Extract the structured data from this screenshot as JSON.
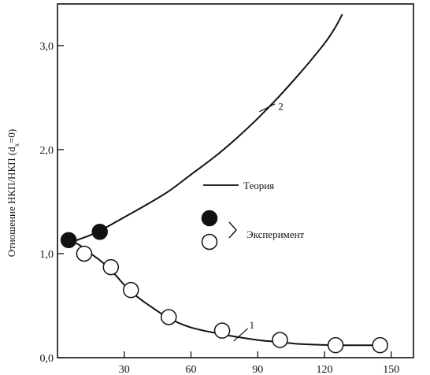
{
  "chart_data": {
    "type": "line",
    "ylabel_main": "Отношение НКП/НКП (d",
    "ylabel_sub": "x",
    "ylabel_tail": "=0)",
    "xlim": [
      0,
      160
    ],
    "ylim": [
      0,
      3.4
    ],
    "x_ticks": [
      {
        "value": 30,
        "label": "30"
      },
      {
        "value": 60,
        "label": "60"
      },
      {
        "value": 90,
        "label": "90"
      },
      {
        "value": 120,
        "label": "120"
      },
      {
        "value": 150,
        "label": "150"
      }
    ],
    "y_ticks": [
      {
        "value": 0,
        "label": "0,0"
      },
      {
        "value": 1,
        "label": "1,0"
      },
      {
        "value": 2,
        "label": "2,0"
      },
      {
        "value": 3,
        "label": "3,0"
      }
    ],
    "series": [
      {
        "name": "2",
        "kind": "theory",
        "x": [
          5,
          10,
          15,
          20,
          30,
          40,
          50,
          60,
          70,
          80,
          90,
          100,
          110,
          120,
          125,
          128
        ],
        "y": [
          1.1,
          1.14,
          1.18,
          1.23,
          1.35,
          1.47,
          1.6,
          1.76,
          1.92,
          2.1,
          2.3,
          2.52,
          2.76,
          3.02,
          3.18,
          3.3
        ]
      },
      {
        "name": "1",
        "kind": "theory",
        "x": [
          5,
          10,
          15,
          20,
          25,
          30,
          35,
          40,
          50,
          60,
          75,
          90,
          100,
          110,
          125,
          145
        ],
        "y": [
          1.14,
          1.08,
          1.0,
          0.92,
          0.82,
          0.7,
          0.6,
          0.52,
          0.38,
          0.29,
          0.22,
          0.17,
          0.15,
          0.13,
          0.12,
          0.12
        ]
      }
    ],
    "experiment_filled": {
      "x": [
        5,
        19
      ],
      "y": [
        1.13,
        1.21
      ]
    },
    "experiment_open": {
      "x": [
        12,
        24,
        33,
        50,
        74,
        100,
        125,
        145
      ],
      "y": [
        1.0,
        0.87,
        0.65,
        0.39,
        0.26,
        0.17,
        0.12,
        0.12
      ]
    },
    "legend": {
      "theory_label": "Теория",
      "experiment_label": "Эксперимент",
      "placement": "center-right"
    },
    "grid": false
  }
}
